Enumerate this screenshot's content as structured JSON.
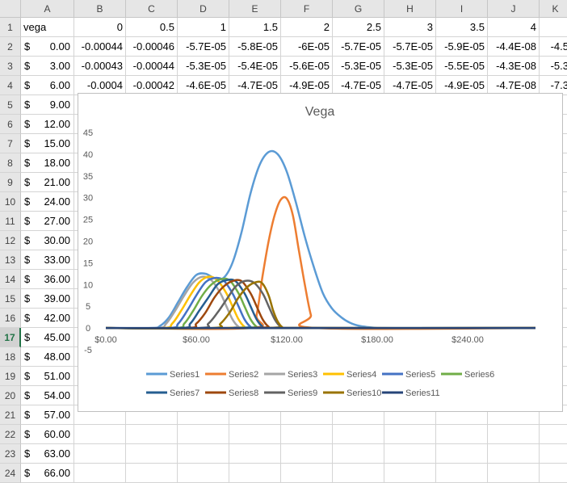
{
  "spreadsheet": {
    "columns": [
      "A",
      "B",
      "C",
      "D",
      "E",
      "F",
      "G",
      "H",
      "I",
      "J",
      "K"
    ],
    "rows": [
      {
        "num": "1",
        "a_text": "vega",
        "cells": [
          "0",
          "0.5",
          "1",
          "1.5",
          "2",
          "2.5",
          "3",
          "3.5",
          "4",
          ""
        ]
      },
      {
        "num": "2",
        "a_sym": "$",
        "a_val": "0.00",
        "cells": [
          "-0.00044",
          "-0.00046",
          "-5.7E-05",
          "-5.8E-05",
          "-6E-05",
          "-5.7E-05",
          "-5.7E-05",
          "-5.9E-05",
          "-4.4E-08",
          "-4.5"
        ]
      },
      {
        "num": "3",
        "a_sym": "$",
        "a_val": "3.00",
        "cells": [
          "-0.00043",
          "-0.00044",
          "-5.3E-05",
          "-5.4E-05",
          "-5.6E-05",
          "-5.3E-05",
          "-5.3E-05",
          "-5.5E-05",
          "-4.3E-08",
          "-5.3"
        ]
      },
      {
        "num": "4",
        "a_sym": "$",
        "a_val": "6.00",
        "cells": [
          "-0.0004",
          "-0.00042",
          "-4.6E-05",
          "-4.7E-05",
          "-4.9E-05",
          "-4.7E-05",
          "-4.7E-05",
          "-4.9E-05",
          "-4.7E-08",
          "-7.3"
        ]
      },
      {
        "num": "5",
        "a_sym": "$",
        "a_val": "9.00",
        "cells": [
          "",
          "",
          "",
          "",
          "",
          "",
          "",
          "",
          "",
          ""
        ]
      },
      {
        "num": "6",
        "a_sym": "$",
        "a_val": "12.00",
        "cells": [
          "",
          "",
          "",
          "",
          "",
          "",
          "",
          "",
          "",
          ""
        ]
      },
      {
        "num": "7",
        "a_sym": "$",
        "a_val": "15.00",
        "cells": [
          "",
          "",
          "",
          "",
          "",
          "",
          "",
          "",
          "",
          ""
        ]
      },
      {
        "num": "8",
        "a_sym": "$",
        "a_val": "18.00",
        "cells": [
          "",
          "",
          "",
          "",
          "",
          "",
          "",
          "",
          "",
          ""
        ]
      },
      {
        "num": "9",
        "a_sym": "$",
        "a_val": "21.00",
        "cells": [
          "",
          "",
          "",
          "",
          "",
          "",
          "",
          "",
          "",
          ""
        ]
      },
      {
        "num": "10",
        "a_sym": "$",
        "a_val": "24.00",
        "cells": [
          "",
          "",
          "",
          "",
          "",
          "",
          "",
          "",
          "",
          ""
        ]
      },
      {
        "num": "11",
        "a_sym": "$",
        "a_val": "27.00",
        "cells": [
          "",
          "",
          "",
          "",
          "",
          "",
          "",
          "",
          "",
          ""
        ]
      },
      {
        "num": "12",
        "a_sym": "$",
        "a_val": "30.00",
        "cells": [
          "",
          "",
          "",
          "",
          "",
          "",
          "",
          "",
          "",
          ""
        ]
      },
      {
        "num": "13",
        "a_sym": "$",
        "a_val": "33.00",
        "cells": [
          "",
          "",
          "",
          "",
          "",
          "",
          "",
          "",
          "",
          ""
        ]
      },
      {
        "num": "14",
        "a_sym": "$",
        "a_val": "36.00",
        "cells": [
          "",
          "",
          "",
          "",
          "",
          "",
          "",
          "",
          "",
          ""
        ]
      },
      {
        "num": "15",
        "a_sym": "$",
        "a_val": "39.00",
        "cells": [
          "",
          "",
          "",
          "",
          "",
          "",
          "",
          "",
          "",
          ""
        ]
      },
      {
        "num": "16",
        "a_sym": "$",
        "a_val": "42.00",
        "cells": [
          "",
          "",
          "",
          "",
          "",
          "",
          "",
          "",
          "",
          ""
        ]
      },
      {
        "num": "17",
        "a_sym": "$",
        "a_val": "45.00",
        "cells": [
          "",
          "",
          "",
          "",
          "",
          "",
          "",
          "",
          "",
          ""
        ],
        "selected": true
      },
      {
        "num": "18",
        "a_sym": "$",
        "a_val": "48.00",
        "cells": [
          "",
          "",
          "",
          "",
          "",
          "",
          "",
          "",
          "",
          ""
        ]
      },
      {
        "num": "19",
        "a_sym": "$",
        "a_val": "51.00",
        "cells": [
          "",
          "",
          "",
          "",
          "",
          "",
          "",
          "",
          "",
          ""
        ]
      },
      {
        "num": "20",
        "a_sym": "$",
        "a_val": "54.00",
        "cells": [
          "",
          "",
          "",
          "",
          "",
          "",
          "",
          "",
          "",
          ""
        ]
      },
      {
        "num": "21",
        "a_sym": "$",
        "a_val": "57.00",
        "cells": [
          "",
          "",
          "",
          "",
          "",
          "",
          "",
          "",
          "",
          ""
        ]
      },
      {
        "num": "22",
        "a_sym": "$",
        "a_val": "60.00",
        "cells": [
          "",
          "",
          "",
          "",
          "",
          "",
          "",
          "",
          "",
          ""
        ]
      },
      {
        "num": "23",
        "a_sym": "$",
        "a_val": "63.00",
        "cells": [
          "",
          "",
          "",
          "",
          "",
          "",
          "",
          "",
          "",
          ""
        ]
      },
      {
        "num": "24",
        "a_sym": "$",
        "a_val": "66.00",
        "cells": [
          "",
          "",
          "",
          "",
          "",
          "",
          "",
          "",
          "",
          ""
        ]
      }
    ]
  },
  "chart_data": {
    "type": "line",
    "title": "Vega",
    "xlabel": "",
    "ylabel": "",
    "xlim": [
      0,
      285
    ],
    "ylim": [
      -5,
      45
    ],
    "y_ticks": [
      "45",
      "40",
      "35",
      "30",
      "25",
      "20",
      "15",
      "10",
      "5",
      "0",
      "-5"
    ],
    "x_ticks": [
      "$0.00",
      "$60.00",
      "$120.00",
      "$180.00",
      "$240.00"
    ],
    "x_tick_values": [
      0,
      60,
      120,
      180,
      240
    ],
    "y_tick_values": [
      45,
      40,
      35,
      30,
      25,
      20,
      15,
      10,
      5,
      0,
      -5
    ],
    "grid": false,
    "legend_position": "bottom",
    "series": [
      {
        "name": "Series1",
        "color": "#5b9bd5",
        "x": [
          0,
          30,
          36,
          42,
          48,
          54,
          60,
          66,
          72,
          78,
          84,
          90,
          96,
          102,
          108,
          114,
          120,
          126,
          132,
          138,
          144,
          150,
          156,
          162,
          168,
          174,
          180,
          186,
          192,
          198,
          204,
          285
        ],
        "y": [
          0,
          0,
          0.5,
          2.5,
          6,
          9.5,
          12.2,
          12.5,
          11.5,
          11.5,
          15,
          22,
          31,
          37.5,
          40.5,
          40,
          36,
          29,
          21,
          14,
          8,
          4.5,
          2.5,
          1.2,
          0.5,
          0.2,
          0,
          0,
          0,
          0,
          0,
          0
        ]
      },
      {
        "name": "Series2",
        "color": "#ed7d31",
        "x": [
          0,
          96,
          100,
          104,
          108,
          112,
          116,
          120,
          124,
          128,
          132,
          136,
          140,
          285
        ],
        "y": [
          0,
          0,
          3,
          12,
          20,
          26,
          29.5,
          29.8,
          26,
          18,
          10,
          3,
          0,
          0
        ]
      },
      {
        "name": "Series3",
        "color": "#a5a5a5",
        "x": [
          0,
          34,
          40,
          46,
          52,
          58,
          64,
          70,
          76,
          80,
          84,
          88,
          92,
          285
        ],
        "y": [
          0,
          0,
          1,
          4,
          7.5,
          10.5,
          11.8,
          11,
          8,
          5,
          2,
          0.3,
          0,
          0
        ]
      },
      {
        "name": "Series4",
        "color": "#ffc000",
        "x": [
          0,
          38,
          44,
          50,
          56,
          62,
          68,
          74,
          80,
          84,
          88,
          92,
          96,
          285
        ],
        "y": [
          0,
          0,
          1,
          4,
          7.5,
          10.5,
          11.8,
          11,
          8,
          5,
          2,
          0.3,
          0,
          0
        ]
      },
      {
        "name": "Series5",
        "color": "#4472c4",
        "x": [
          0,
          42,
          48,
          54,
          60,
          66,
          72,
          78,
          84,
          88,
          92,
          96,
          100,
          285
        ],
        "y": [
          0,
          0,
          1,
          4,
          7.5,
          10.5,
          11.5,
          11,
          8,
          5,
          2,
          0.3,
          0,
          0
        ]
      },
      {
        "name": "Series6",
        "color": "#70ad47",
        "x": [
          0,
          46,
          52,
          58,
          64,
          70,
          76,
          82,
          88,
          92,
          96,
          100,
          104,
          285
        ],
        "y": [
          0,
          0,
          1,
          4,
          7.5,
          10,
          11.2,
          11,
          8,
          5,
          2,
          0.3,
          0,
          0
        ]
      },
      {
        "name": "Series7",
        "color": "#255e91",
        "x": [
          0,
          50,
          56,
          62,
          68,
          74,
          80,
          86,
          92,
          96,
          100,
          104,
          108,
          285
        ],
        "y": [
          0,
          0,
          1,
          4,
          7,
          10,
          11,
          10.8,
          8,
          5,
          2,
          0.3,
          0,
          0
        ]
      },
      {
        "name": "Series8",
        "color": "#9e480e",
        "x": [
          0,
          54,
          60,
          66,
          72,
          78,
          84,
          90,
          96,
          100,
          104,
          108,
          112,
          285
        ],
        "y": [
          0,
          0,
          1,
          3.5,
          7,
          9.5,
          10.8,
          10.8,
          8,
          5,
          2,
          0.3,
          0,
          0
        ]
      },
      {
        "name": "Series9",
        "color": "#636363",
        "x": [
          0,
          62,
          68,
          74,
          80,
          86,
          92,
          98,
          104,
          108,
          112,
          116,
          120,
          285
        ],
        "y": [
          0,
          0,
          1,
          3.5,
          6.5,
          9.5,
          10.8,
          10.5,
          8,
          5,
          2,
          0.3,
          0,
          0
        ]
      },
      {
        "name": "Series10",
        "color": "#997300",
        "x": [
          0,
          70,
          76,
          82,
          88,
          94,
          100,
          104,
          108,
          111,
          114,
          117,
          120,
          285
        ],
        "y": [
          0,
          0,
          1,
          3.5,
          7,
          9.5,
          10.6,
          10.2,
          7.5,
          4,
          1.5,
          0.2,
          0,
          0
        ]
      },
      {
        "name": "Series11",
        "color": "#264478",
        "x": [
          0,
          285
        ],
        "y": [
          0,
          0
        ]
      }
    ]
  }
}
